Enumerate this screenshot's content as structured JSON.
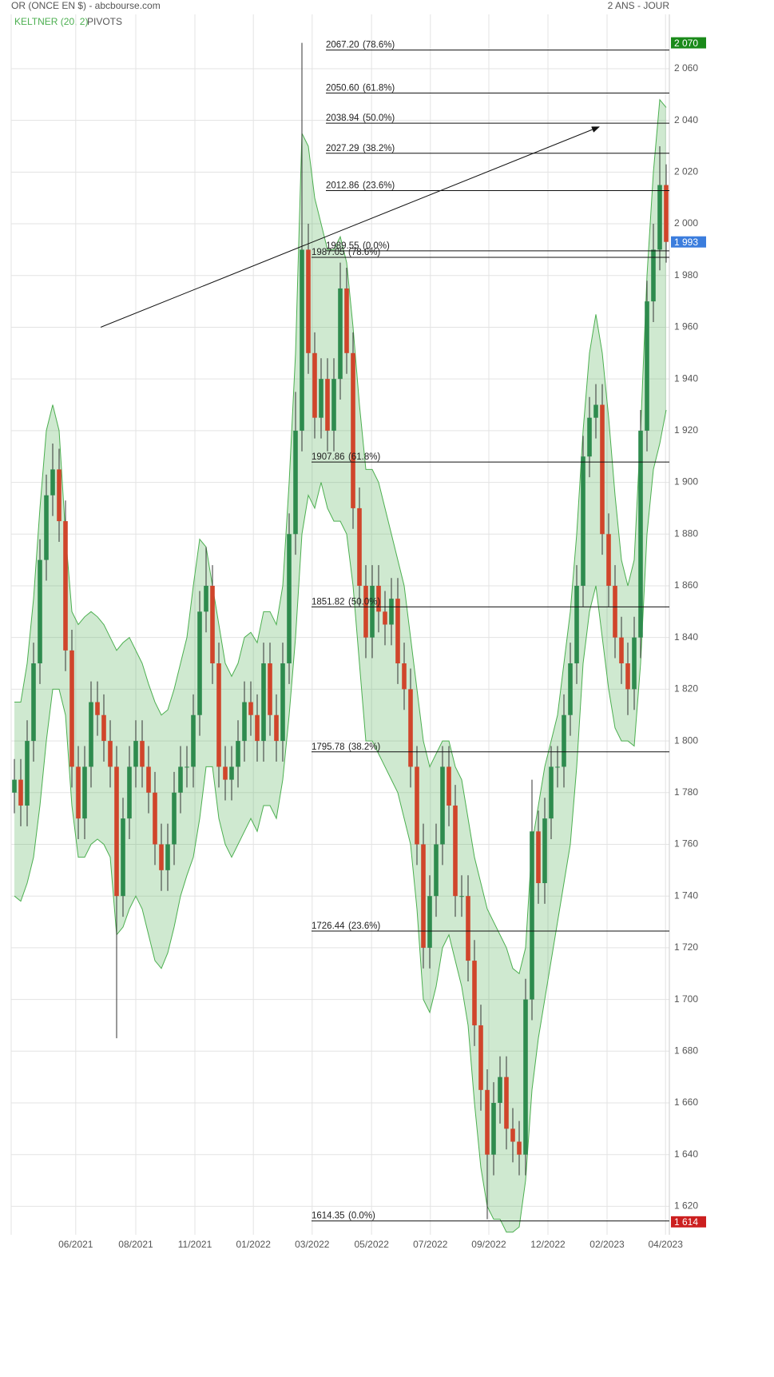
{
  "chart_data": {
    "type": "candlestick",
    "title": "OR (ONCE EN $) - abcbourse.com",
    "period": "2 ANS - JOUR",
    "legend": [
      "KELTNER (20, 2)",
      "PIVOTS"
    ],
    "up_color": "#2e8b4e",
    "down_color": "#d0452b",
    "band_color": "#4caf50",
    "grid": true,
    "xlim": [
      -0.5,
      102.5
    ],
    "xticks": [
      {
        "value": 9.6,
        "label": "06/2021"
      },
      {
        "value": 19,
        "label": "08/2021"
      },
      {
        "value": 28.25,
        "label": "11/2021"
      },
      {
        "value": 37.4,
        "label": "01/2022"
      },
      {
        "value": 46.6,
        "label": "03/2022"
      },
      {
        "value": 55.9,
        "label": "05/2022"
      },
      {
        "value": 65.1,
        "label": "07/2022"
      },
      {
        "value": 74.25,
        "label": "09/2022"
      },
      {
        "value": 83.5,
        "label": "12/2022"
      },
      {
        "value": 92.75,
        "label": "02/2023"
      },
      {
        "value": 101.9,
        "label": "04/2023"
      }
    ],
    "ylim": [
      1609,
      2081
    ],
    "yticks": [
      {
        "value": 1620,
        "label": "1 620"
      },
      {
        "value": 1640,
        "label": "1 640"
      },
      {
        "value": 1660,
        "label": "1 660"
      },
      {
        "value": 1680,
        "label": "1 680"
      },
      {
        "value": 1700,
        "label": "1 700"
      },
      {
        "value": 1720,
        "label": "1 720"
      },
      {
        "value": 1740,
        "label": "1 740"
      },
      {
        "value": 1760,
        "label": "1 760"
      },
      {
        "value": 1780,
        "label": "1 780"
      },
      {
        "value": 1800,
        "label": "1 800"
      },
      {
        "value": 1820,
        "label": "1 820"
      },
      {
        "value": 1840,
        "label": "1 840"
      },
      {
        "value": 1860,
        "label": "1 860"
      },
      {
        "value": 1880,
        "label": "1 880"
      },
      {
        "value": 1900,
        "label": "1 900"
      },
      {
        "value": 1920,
        "label": "1 920"
      },
      {
        "value": 1940,
        "label": "1 940"
      },
      {
        "value": 1960,
        "label": "1 960"
      },
      {
        "value": 1980,
        "label": "1 980"
      },
      {
        "value": 2000,
        "label": "2 000"
      },
      {
        "value": 2020,
        "label": "2 020"
      },
      {
        "value": 2040,
        "label": "2 040"
      },
      {
        "value": 2060,
        "label": "2 060"
      }
    ],
    "open": [
      1780,
      1785,
      1775,
      1800,
      1830,
      1870,
      1895,
      1905,
      1885,
      1835,
      1790,
      1770,
      1790,
      1815,
      1810,
      1800,
      1790,
      1740,
      1770,
      1790,
      1800,
      1790,
      1780,
      1760,
      1750,
      1760,
      1780,
      1790,
      1790,
      1810,
      1850,
      1860,
      1830,
      1790,
      1785,
      1790,
      1800,
      1815,
      1810,
      1800,
      1830,
      1810,
      1800,
      1830,
      1880,
      1920,
      1990,
      1950,
      1925,
      1940,
      1920,
      1940,
      1975,
      1950,
      1890,
      1860,
      1840,
      1860,
      1850,
      1845,
      1855,
      1830,
      1820,
      1790,
      1760,
      1720,
      1740,
      1760,
      1790,
      1775,
      1740,
      1740,
      1715,
      1690,
      1665,
      1640,
      1660,
      1670,
      1650,
      1645,
      1640,
      1700,
      1765,
      1745,
      1770,
      1790,
      1790,
      1810,
      1830,
      1860,
      1910,
      1925,
      1930,
      1880,
      1860,
      1840,
      1830,
      1820,
      1840,
      1920,
      1970,
      1990,
      2015
    ],
    "high": [
      1793,
      1793,
      1808,
      1838,
      1878,
      1903,
      1915,
      1913,
      1893,
      1843,
      1798,
      1798,
      1823,
      1823,
      1818,
      1808,
      1798,
      1778,
      1798,
      1808,
      1808,
      1798,
      1788,
      1768,
      1768,
      1788,
      1798,
      1798,
      1818,
      1858,
      1875,
      1868,
      1838,
      1798,
      1798,
      1808,
      1823,
      1823,
      1818,
      1838,
      1838,
      1818,
      1838,
      1888,
      1935,
      2070,
      2000,
      1958,
      1948,
      1948,
      1948,
      1985,
      1983,
      1958,
      1898,
      1868,
      1868,
      1868,
      1858,
      1863,
      1863,
      1838,
      1828,
      1798,
      1768,
      1748,
      1768,
      1798,
      1798,
      1783,
      1748,
      1748,
      1723,
      1698,
      1673,
      1668,
      1678,
      1678,
      1658,
      1653,
      1708,
      1785,
      1773,
      1778,
      1798,
      1798,
      1818,
      1838,
      1868,
      1918,
      1933,
      1938,
      1938,
      1888,
      1868,
      1848,
      1838,
      1848,
      1928,
      1978,
      2000,
      2030,
      2023
    ],
    "low": [
      1772,
      1767,
      1767,
      1792,
      1822,
      1862,
      1887,
      1877,
      1827,
      1782,
      1762,
      1762,
      1782,
      1802,
      1792,
      1782,
      1685,
      1732,
      1762,
      1782,
      1782,
      1772,
      1752,
      1742,
      1742,
      1752,
      1772,
      1782,
      1782,
      1802,
      1842,
      1822,
      1782,
      1777,
      1777,
      1782,
      1792,
      1802,
      1792,
      1792,
      1802,
      1792,
      1792,
      1822,
      1872,
      1912,
      1942,
      1917,
      1917,
      1912,
      1912,
      1932,
      1942,
      1882,
      1852,
      1832,
      1832,
      1842,
      1837,
      1837,
      1822,
      1812,
      1782,
      1752,
      1712,
      1712,
      1732,
      1752,
      1767,
      1732,
      1732,
      1707,
      1682,
      1657,
      1615,
      1632,
      1652,
      1642,
      1637,
      1632,
      1632,
      1692,
      1737,
      1737,
      1762,
      1782,
      1782,
      1802,
      1822,
      1852,
      1902,
      1917,
      1872,
      1852,
      1832,
      1822,
      1810,
      1812,
      1832,
      1912,
      1962,
      1982,
      1985
    ],
    "close": [
      1785,
      1775,
      1800,
      1830,
      1870,
      1895,
      1905,
      1885,
      1835,
      1790,
      1770,
      1790,
      1815,
      1810,
      1800,
      1790,
      1740,
      1770,
      1790,
      1800,
      1790,
      1780,
      1760,
      1750,
      1760,
      1780,
      1790,
      1790,
      1810,
      1850,
      1860,
      1830,
      1790,
      1785,
      1790,
      1800,
      1815,
      1810,
      1800,
      1830,
      1810,
      1800,
      1830,
      1880,
      1920,
      1990,
      1950,
      1925,
      1940,
      1920,
      1940,
      1975,
      1950,
      1890,
      1860,
      1840,
      1860,
      1850,
      1845,
      1855,
      1830,
      1820,
      1790,
      1760,
      1720,
      1740,
      1760,
      1790,
      1775,
      1740,
      1740,
      1715,
      1690,
      1665,
      1640,
      1660,
      1670,
      1650,
      1645,
      1640,
      1700,
      1765,
      1745,
      1770,
      1790,
      1790,
      1810,
      1830,
      1860,
      1910,
      1925,
      1930,
      1880,
      1860,
      1840,
      1830,
      1820,
      1840,
      1920,
      1970,
      1990,
      2015,
      1993
    ],
    "keltner": {
      "upper": [
        1815,
        1815,
        1830,
        1855,
        1890,
        1920,
        1930,
        1920,
        1880,
        1850,
        1845,
        1848,
        1850,
        1848,
        1845,
        1840,
        1835,
        1838,
        1840,
        1835,
        1830,
        1822,
        1815,
        1810,
        1812,
        1820,
        1830,
        1840,
        1860,
        1878,
        1875,
        1860,
        1845,
        1830,
        1825,
        1830,
        1840,
        1842,
        1838,
        1850,
        1850,
        1845,
        1860,
        1900,
        1950,
        2035,
        2030,
        2010,
        2000,
        1990,
        1990,
        1995,
        1985,
        1960,
        1930,
        1905,
        1905,
        1900,
        1890,
        1880,
        1870,
        1860,
        1840,
        1820,
        1800,
        1790,
        1795,
        1800,
        1800,
        1790,
        1785,
        1770,
        1755,
        1745,
        1735,
        1730,
        1725,
        1720,
        1712,
        1710,
        1720,
        1760,
        1775,
        1790,
        1800,
        1810,
        1830,
        1850,
        1880,
        1920,
        1950,
        1965,
        1950,
        1925,
        1895,
        1870,
        1860,
        1870,
        1920,
        1980,
        2020,
        2048,
        2045
      ],
      "lower": [
        1740,
        1738,
        1745,
        1755,
        1775,
        1800,
        1820,
        1820,
        1810,
        1775,
        1755,
        1755,
        1760,
        1762,
        1760,
        1755,
        1725,
        1728,
        1735,
        1740,
        1735,
        1725,
        1715,
        1712,
        1718,
        1728,
        1740,
        1748,
        1755,
        1770,
        1790,
        1790,
        1770,
        1760,
        1755,
        1760,
        1765,
        1770,
        1765,
        1775,
        1775,
        1770,
        1785,
        1810,
        1840,
        1880,
        1895,
        1890,
        1900,
        1890,
        1885,
        1885,
        1880,
        1860,
        1830,
        1800,
        1800,
        1795,
        1790,
        1785,
        1780,
        1770,
        1760,
        1735,
        1700,
        1695,
        1705,
        1720,
        1725,
        1715,
        1705,
        1690,
        1660,
        1635,
        1620,
        1615,
        1615,
        1610,
        1610,
        1612,
        1630,
        1665,
        1685,
        1700,
        1715,
        1730,
        1745,
        1760,
        1790,
        1830,
        1850,
        1860,
        1840,
        1820,
        1805,
        1800,
        1800,
        1798,
        1830,
        1880,
        1905,
        1915,
        1928
      ]
    },
    "fib_upper": [
      {
        "value": 2067.2,
        "label": "2067.20",
        "pct": "(78.6%)"
      },
      {
        "value": 2050.6,
        "label": "2050.60",
        "pct": "(61.8%)"
      },
      {
        "value": 2038.94,
        "label": "2038.94",
        "pct": "(50.0%)"
      },
      {
        "value": 2027.29,
        "label": "2027.29",
        "pct": "(38.2%)"
      },
      {
        "value": 2012.86,
        "label": "2012.86",
        "pct": "(23.6%)"
      },
      {
        "value": 1989.55,
        "label": "1989.55",
        "pct": "(0.0%)"
      }
    ],
    "fib_lower": [
      {
        "value": 1987.05,
        "label": "1987.05",
        "pct": "(78.6%)"
      },
      {
        "value": 1907.86,
        "label": "1907.86",
        "pct": "(61.8%)"
      },
      {
        "value": 1851.82,
        "label": "1851.82",
        "pct": "(50.0%)"
      },
      {
        "value": 1795.78,
        "label": "1795.78",
        "pct": "(38.2%)"
      },
      {
        "value": 1726.44,
        "label": "1726.44",
        "pct": "(23.6%)"
      },
      {
        "value": 1614.35,
        "label": "1614.35",
        "pct": "(0.0%)"
      }
    ],
    "trendline": {
      "x": [
        13.5,
        91.5
      ],
      "y": [
        1960,
        2037.5
      ]
    },
    "price_badges": [
      {
        "value": 2070,
        "label": "2 070",
        "color": "#1a8a1a"
      },
      {
        "value": 1993,
        "label": "1 993",
        "color": "#3b7ddd"
      },
      {
        "value": 1614,
        "label": "1 614",
        "color": "#cc1f1f"
      }
    ]
  }
}
